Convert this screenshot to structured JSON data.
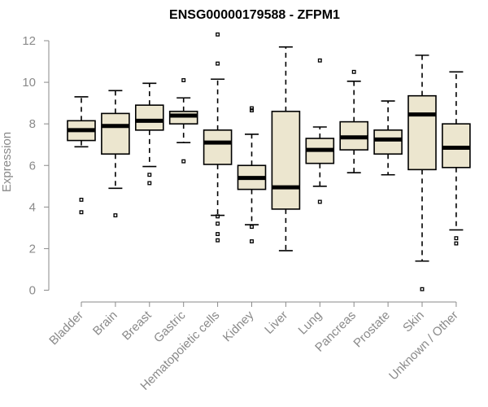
{
  "chart_data": {
    "type": "boxplot",
    "title": "ENSG00000179588 - ZFPM1",
    "xlabel": "",
    "ylabel": "Expression",
    "ylim": [
      0,
      12.3
    ],
    "yticks": [
      0,
      2,
      4,
      6,
      8,
      10,
      12
    ],
    "categories": [
      "Bladder",
      "Brain",
      "Breast",
      "Gastric",
      "Hematopoietic cells",
      "Kidney",
      "Liver",
      "Lung",
      "Pancreas",
      "Prostate",
      "Skin",
      "Unknown / Other"
    ],
    "boxes": [
      {
        "name": "Bladder",
        "whisker_low": 6.9,
        "q1": 7.2,
        "median": 7.7,
        "q3": 8.15,
        "whisker_high": 9.3,
        "outliers": [
          4.35,
          3.75
        ]
      },
      {
        "name": "Brain",
        "whisker_low": 4.9,
        "q1": 6.55,
        "median": 7.9,
        "q3": 8.5,
        "whisker_high": 9.6,
        "outliers": [
          3.6
        ]
      },
      {
        "name": "Breast",
        "whisker_low": 5.95,
        "q1": 7.7,
        "median": 8.15,
        "q3": 8.9,
        "whisker_high": 9.95,
        "outliers": [
          5.55,
          5.15
        ]
      },
      {
        "name": "Gastric",
        "whisker_low": 7.1,
        "q1": 8.0,
        "median": 8.4,
        "q3": 8.6,
        "whisker_high": 9.25,
        "outliers": [
          10.1,
          6.2
        ]
      },
      {
        "name": "Hematopoietic cells",
        "whisker_low": 3.6,
        "q1": 6.05,
        "median": 7.1,
        "q3": 7.7,
        "whisker_high": 10.15,
        "outliers": [
          12.3,
          10.9,
          3.55,
          3.2,
          2.7,
          2.4
        ]
      },
      {
        "name": "Kidney",
        "whisker_low": 3.15,
        "q1": 4.85,
        "median": 5.4,
        "q3": 6.0,
        "whisker_high": 7.5,
        "outliers": [
          8.75,
          8.65,
          3.05,
          2.35
        ]
      },
      {
        "name": "Liver",
        "whisker_low": 1.9,
        "q1": 3.9,
        "median": 4.95,
        "q3": 8.6,
        "whisker_high": 11.7,
        "outliers": []
      },
      {
        "name": "Lung",
        "whisker_low": 5.0,
        "q1": 6.1,
        "median": 6.75,
        "q3": 7.3,
        "whisker_high": 7.85,
        "outliers": [
          11.05,
          4.25
        ]
      },
      {
        "name": "Pancreas",
        "whisker_low": 5.65,
        "q1": 6.75,
        "median": 7.35,
        "q3": 8.1,
        "whisker_high": 10.05,
        "outliers": [
          10.5
        ]
      },
      {
        "name": "Prostate",
        "whisker_low": 5.55,
        "q1": 6.55,
        "median": 7.25,
        "q3": 7.7,
        "whisker_high": 9.1,
        "outliers": []
      },
      {
        "name": "Skin",
        "whisker_low": 1.4,
        "q1": 5.8,
        "median": 8.45,
        "q3": 9.35,
        "whisker_high": 11.3,
        "outliers": [
          0.05
        ]
      },
      {
        "name": "Unknown / Other",
        "whisker_low": 2.9,
        "q1": 5.9,
        "median": 6.85,
        "q3": 8.0,
        "whisker_high": 10.5,
        "outliers": [
          2.5,
          2.25
        ]
      }
    ]
  }
}
